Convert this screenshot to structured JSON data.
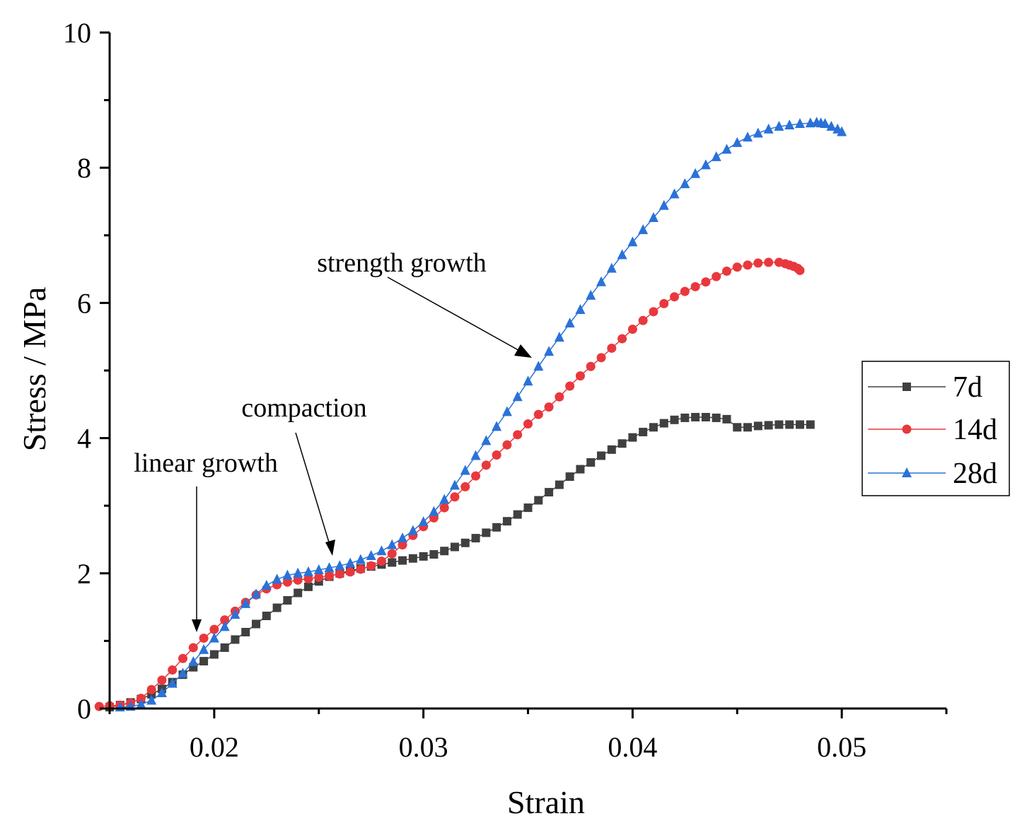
{
  "chart_data": {
    "type": "line",
    "title": "",
    "xlabel": "Strain",
    "ylabel": "Stress  / MPa",
    "xlim": [
      0.015,
      0.055
    ],
    "ylim": [
      0,
      10
    ],
    "xticks": [
      0.02,
      0.03,
      0.04,
      0.05
    ],
    "xtick_labels": [
      "0.02",
      "0.03",
      "0.04",
      "0.05"
    ],
    "yticks": [
      0,
      2,
      4,
      6,
      8,
      10
    ],
    "ytick_labels": [
      "0",
      "2",
      "4",
      "6",
      "8",
      "10"
    ],
    "grid": false,
    "legend_position": "right",
    "series": [
      {
        "name": "7d",
        "color": "#404040",
        "marker": "square",
        "x": [
          0.015,
          0.0155,
          0.016,
          0.0165,
          0.017,
          0.0175,
          0.018,
          0.0185,
          0.019,
          0.0195,
          0.02,
          0.0205,
          0.021,
          0.0215,
          0.022,
          0.0225,
          0.023,
          0.0235,
          0.024,
          0.0245,
          0.025,
          0.0255,
          0.026,
          0.0265,
          0.027,
          0.0275,
          0.028,
          0.0285,
          0.029,
          0.0295,
          0.03,
          0.0305,
          0.031,
          0.0315,
          0.032,
          0.0325,
          0.033,
          0.0335,
          0.034,
          0.0345,
          0.035,
          0.0355,
          0.036,
          0.0365,
          0.037,
          0.0375,
          0.038,
          0.0385,
          0.039,
          0.0395,
          0.04,
          0.0405,
          0.041,
          0.0415,
          0.042,
          0.0425,
          0.043,
          0.0435,
          0.044,
          0.0445,
          0.045,
          0.0455,
          0.046,
          0.0465,
          0.047,
          0.0475,
          0.048,
          0.0485
        ],
        "y": [
          0.02,
          0.05,
          0.09,
          0.14,
          0.21,
          0.29,
          0.39,
          0.5,
          0.61,
          0.7,
          0.8,
          0.9,
          1.02,
          1.13,
          1.25,
          1.37,
          1.49,
          1.6,
          1.71,
          1.8,
          1.88,
          1.95,
          2.0,
          2.04,
          2.07,
          2.1,
          2.13,
          2.16,
          2.19,
          2.22,
          2.25,
          2.28,
          2.33,
          2.39,
          2.45,
          2.52,
          2.6,
          2.68,
          2.77,
          2.87,
          2.97,
          3.08,
          3.2,
          3.31,
          3.43,
          3.54,
          3.64,
          3.74,
          3.83,
          3.92,
          4.01,
          4.09,
          4.16,
          4.22,
          4.27,
          4.3,
          4.31,
          4.31,
          4.3,
          4.28,
          4.16,
          4.16,
          4.18,
          4.19,
          4.2,
          4.2,
          4.2,
          4.2
        ]
      },
      {
        "name": "14d",
        "color": "#e8383d",
        "marker": "circle",
        "x": [
          0.0145,
          0.015,
          0.0155,
          0.016,
          0.0165,
          0.017,
          0.0175,
          0.018,
          0.0185,
          0.019,
          0.0195,
          0.02,
          0.0205,
          0.021,
          0.0215,
          0.022,
          0.0225,
          0.023,
          0.0235,
          0.024,
          0.0245,
          0.025,
          0.0255,
          0.026,
          0.0265,
          0.027,
          0.0275,
          0.028,
          0.0285,
          0.029,
          0.0295,
          0.03,
          0.0305,
          0.031,
          0.0315,
          0.032,
          0.0325,
          0.033,
          0.0335,
          0.034,
          0.0345,
          0.035,
          0.0355,
          0.036,
          0.0365,
          0.037,
          0.0375,
          0.038,
          0.0385,
          0.039,
          0.0395,
          0.04,
          0.0405,
          0.041,
          0.0415,
          0.042,
          0.0425,
          0.043,
          0.0435,
          0.044,
          0.0445,
          0.045,
          0.0455,
          0.046,
          0.0465,
          0.047,
          0.0473,
          0.0475,
          0.0477,
          0.0479,
          0.048
        ],
        "y": [
          0.03,
          0.04,
          0.05,
          0.08,
          0.15,
          0.28,
          0.42,
          0.57,
          0.74,
          0.9,
          1.04,
          1.17,
          1.31,
          1.44,
          1.57,
          1.68,
          1.77,
          1.83,
          1.87,
          1.9,
          1.92,
          1.94,
          1.96,
          1.99,
          2.02,
          2.06,
          2.11,
          2.18,
          2.29,
          2.42,
          2.56,
          2.69,
          2.82,
          2.97,
          3.13,
          3.28,
          3.44,
          3.6,
          3.75,
          3.9,
          4.05,
          4.21,
          4.35,
          4.46,
          4.61,
          4.77,
          4.92,
          5.06,
          5.19,
          5.33,
          5.47,
          5.61,
          5.74,
          5.87,
          5.99,
          6.09,
          6.17,
          6.24,
          6.31,
          6.39,
          6.47,
          6.53,
          6.56,
          6.59,
          6.6,
          6.6,
          6.58,
          6.56,
          6.54,
          6.51,
          6.48
        ]
      },
      {
        "name": "28d",
        "color": "#2a72d8",
        "marker": "triangle",
        "x": [
          0.0155,
          0.016,
          0.0165,
          0.017,
          0.0175,
          0.018,
          0.0185,
          0.019,
          0.0195,
          0.02,
          0.0205,
          0.021,
          0.0215,
          0.022,
          0.0225,
          0.023,
          0.0235,
          0.024,
          0.0245,
          0.025,
          0.0255,
          0.026,
          0.0265,
          0.027,
          0.0275,
          0.028,
          0.0285,
          0.029,
          0.0295,
          0.03,
          0.0305,
          0.031,
          0.0315,
          0.032,
          0.0325,
          0.033,
          0.0335,
          0.034,
          0.0345,
          0.035,
          0.0355,
          0.036,
          0.0365,
          0.037,
          0.0375,
          0.038,
          0.0385,
          0.039,
          0.0395,
          0.04,
          0.0405,
          0.041,
          0.0415,
          0.042,
          0.0425,
          0.043,
          0.0435,
          0.044,
          0.0445,
          0.045,
          0.0455,
          0.046,
          0.0465,
          0.047,
          0.0475,
          0.048,
          0.0485,
          0.0488,
          0.049,
          0.0492,
          0.0495,
          0.0498,
          0.05
        ],
        "y": [
          0.02,
          0.03,
          0.06,
          0.12,
          0.23,
          0.37,
          0.52,
          0.69,
          0.87,
          1.04,
          1.21,
          1.39,
          1.55,
          1.69,
          1.82,
          1.91,
          1.97,
          2.0,
          2.02,
          2.05,
          2.08,
          2.11,
          2.15,
          2.2,
          2.26,
          2.33,
          2.42,
          2.52,
          2.63,
          2.76,
          2.91,
          3.09,
          3.3,
          3.52,
          3.74,
          3.96,
          4.17,
          4.39,
          4.61,
          4.84,
          5.06,
          5.28,
          5.49,
          5.7,
          5.9,
          6.11,
          6.31,
          6.51,
          6.71,
          6.9,
          7.08,
          7.26,
          7.44,
          7.61,
          7.76,
          7.91,
          8.04,
          8.16,
          8.27,
          8.37,
          8.45,
          8.51,
          8.57,
          8.61,
          8.63,
          8.65,
          8.66,
          8.67,
          8.66,
          8.65,
          8.61,
          8.57,
          8.53
        ]
      }
    ],
    "annotations": [
      {
        "text": "strength growth",
        "target_x": 0.0355,
        "target_y": 5.05
      },
      {
        "text": "compaction",
        "target_x": 0.0263,
        "target_y": 2.12
      },
      {
        "text": "linear growth",
        "target_x": 0.0193,
        "target_y": 1.05
      }
    ]
  }
}
